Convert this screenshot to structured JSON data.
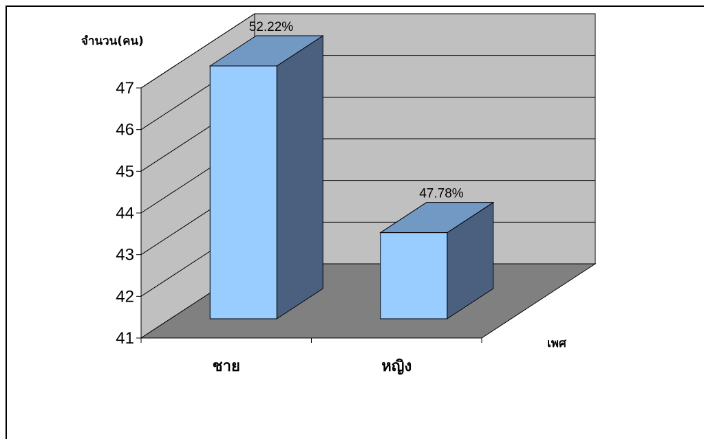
{
  "chart_data": {
    "type": "bar",
    "title": "",
    "ylabel": "จำนวน(คน)",
    "xlabel": "เพศ",
    "ylim": [
      41,
      47
    ],
    "yticks": [
      41,
      42,
      43,
      44,
      45,
      46,
      47
    ],
    "categories": [
      "ชาย",
      "หญิง"
    ],
    "values": [
      47.0,
      43.0
    ],
    "data_labels": [
      "52.22%",
      "47.78%"
    ],
    "grid": true,
    "legend": "none",
    "three_d": true,
    "colors": {
      "bar_front": "#99CCFF",
      "bar_top": "#7299C4",
      "bar_side": "#4A607E",
      "back_wall": "#C0C0C0",
      "side_wall": "#C0C0C0",
      "floor": "#808080",
      "grid": "#000000"
    }
  }
}
